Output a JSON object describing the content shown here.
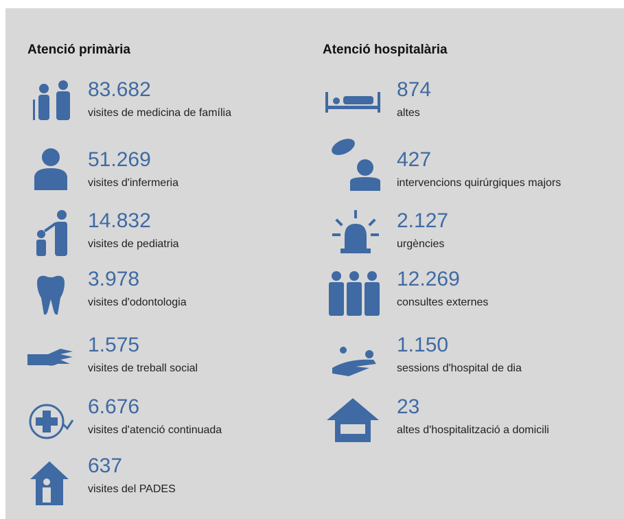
{
  "columns": [
    {
      "title": "Atenció primària",
      "items": [
        {
          "value": "83.682",
          "label": "visites de medicina de família"
        },
        {
          "value": "51.269",
          "label": "visites d'infermeria"
        },
        {
          "value": "14.832",
          "label": "visites de pediatria"
        },
        {
          "value": "3.978",
          "label": "visites d'odontologia"
        },
        {
          "value": "1.575",
          "label": "visites de treball social"
        },
        {
          "value": "6.676",
          "label": "visites d'atenció continuada"
        },
        {
          "value": "637",
          "label": "visites del PADES"
        }
      ]
    },
    {
      "title": "Atenció hospitalària",
      "items": [
        {
          "value": "874",
          "label": "altes"
        },
        {
          "value": "427",
          "label": "intervencions quirúrgiques majors"
        },
        {
          "value": "2.127",
          "label": "urgències"
        },
        {
          "value": "12.269",
          "label": "consultes externes"
        },
        {
          "value": "1.150",
          "label": "sessions d'hospital de dia"
        },
        {
          "value": "23",
          "label": "altes d'hospitalització a domicili"
        }
      ]
    }
  ]
}
